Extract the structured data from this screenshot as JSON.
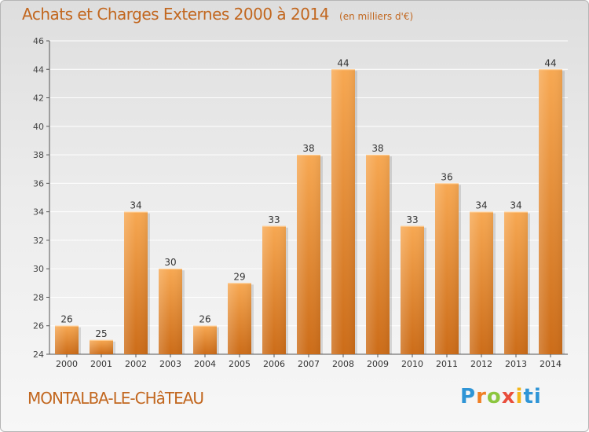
{
  "title": "Achats et Charges Externes 2000 à 2014",
  "unit": "(en milliers d'€)",
  "commune": "MONTALBA-LE-CHâTEAU",
  "brand": "Proxiti",
  "colors": {
    "bar_light": "#f6a24f",
    "bar_dark": "#cf6f1a",
    "text_orange": "#c2671f",
    "grid": "#ffffff"
  },
  "chart_data": {
    "type": "bar",
    "title": "Achats et Charges Externes 2000 à 2014",
    "subtitle": "(en milliers d'€)",
    "categories": [
      "2000",
      "2001",
      "2002",
      "2003",
      "2004",
      "2005",
      "2006",
      "2007",
      "2008",
      "2009",
      "2010",
      "2011",
      "2012",
      "2013",
      "2014"
    ],
    "values": [
      26,
      25,
      34,
      30,
      26,
      29,
      33,
      38,
      44,
      38,
      33,
      36,
      34,
      34,
      44
    ],
    "ylim": [
      24,
      46
    ],
    "yticks": [
      24,
      26,
      28,
      30,
      32,
      34,
      36,
      38,
      40,
      42,
      44,
      46
    ],
    "grid": true,
    "data_labels": true
  }
}
